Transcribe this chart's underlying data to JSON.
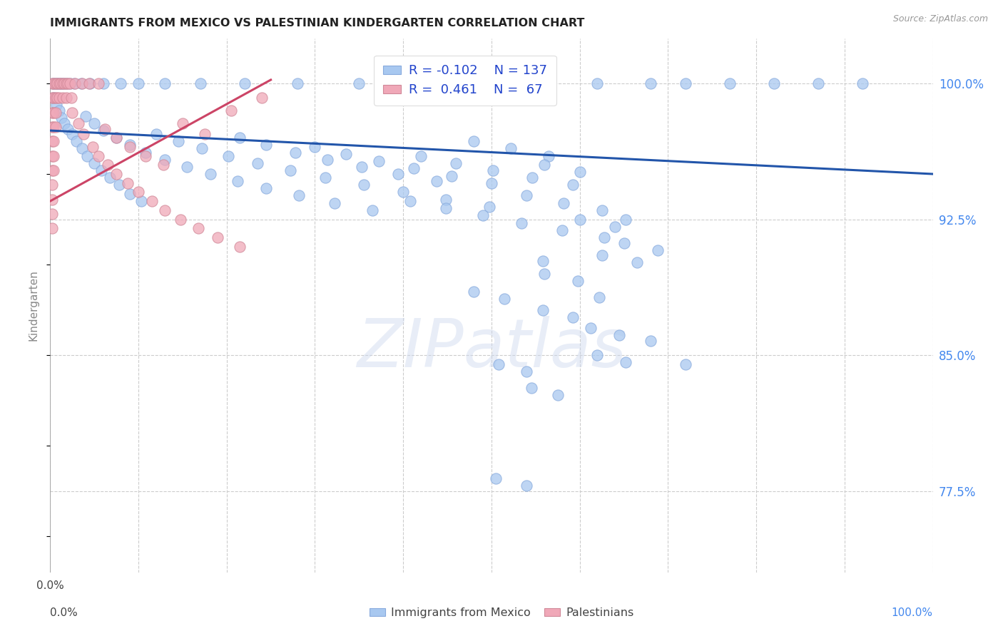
{
  "title": "IMMIGRANTS FROM MEXICO VS PALESTINIAN KINDERGARTEN CORRELATION CHART",
  "source": "Source: ZipAtlas.com",
  "ylabel": "Kindergarten",
  "xmin": 0.0,
  "xmax": 1.0,
  "ymin": 73.0,
  "ymax": 102.5,
  "legend_r1": "R = -0.102",
  "legend_n1": "N = 137",
  "legend_r2": "R =  0.461",
  "legend_n2": "N =  67",
  "blue_color": "#a8c8f0",
  "blue_edge_color": "#88aadd",
  "pink_color": "#f0a8b8",
  "pink_edge_color": "#d08898",
  "blue_line_color": "#2255aa",
  "pink_line_color": "#cc4466",
  "watermark_text": "ZIPatlas",
  "blue_scatter": [
    [
      0.003,
      100.0
    ],
    [
      0.005,
      100.0
    ],
    [
      0.007,
      100.0
    ],
    [
      0.009,
      100.0
    ],
    [
      0.011,
      100.0
    ],
    [
      0.013,
      100.0
    ],
    [
      0.015,
      100.0
    ],
    [
      0.018,
      100.0
    ],
    [
      0.022,
      100.0
    ],
    [
      0.027,
      100.0
    ],
    [
      0.035,
      100.0
    ],
    [
      0.045,
      100.0
    ],
    [
      0.06,
      100.0
    ],
    [
      0.08,
      100.0
    ],
    [
      0.1,
      100.0
    ],
    [
      0.13,
      100.0
    ],
    [
      0.17,
      100.0
    ],
    [
      0.22,
      100.0
    ],
    [
      0.28,
      100.0
    ],
    [
      0.35,
      100.0
    ],
    [
      0.42,
      100.0
    ],
    [
      0.5,
      100.0
    ],
    [
      0.55,
      100.0
    ],
    [
      0.62,
      100.0
    ],
    [
      0.68,
      100.0
    ],
    [
      0.72,
      100.0
    ],
    [
      0.77,
      100.0
    ],
    [
      0.82,
      100.0
    ],
    [
      0.87,
      100.0
    ],
    [
      0.92,
      100.0
    ],
    [
      0.004,
      99.2
    ],
    [
      0.007,
      98.8
    ],
    [
      0.01,
      98.5
    ],
    [
      0.013,
      98.1
    ],
    [
      0.016,
      97.8
    ],
    [
      0.02,
      97.5
    ],
    [
      0.025,
      97.2
    ],
    [
      0.03,
      96.8
    ],
    [
      0.036,
      96.4
    ],
    [
      0.042,
      96.0
    ],
    [
      0.05,
      95.6
    ],
    [
      0.058,
      95.2
    ],
    [
      0.068,
      94.8
    ],
    [
      0.078,
      94.4
    ],
    [
      0.09,
      93.9
    ],
    [
      0.103,
      93.5
    ],
    [
      0.04,
      98.2
    ],
    [
      0.05,
      97.8
    ],
    [
      0.06,
      97.4
    ],
    [
      0.075,
      97.0
    ],
    [
      0.09,
      96.6
    ],
    [
      0.108,
      96.2
    ],
    [
      0.13,
      95.8
    ],
    [
      0.155,
      95.4
    ],
    [
      0.182,
      95.0
    ],
    [
      0.212,
      94.6
    ],
    [
      0.245,
      94.2
    ],
    [
      0.282,
      93.8
    ],
    [
      0.322,
      93.4
    ],
    [
      0.365,
      93.0
    ],
    [
      0.12,
      97.2
    ],
    [
      0.145,
      96.8
    ],
    [
      0.172,
      96.4
    ],
    [
      0.202,
      96.0
    ],
    [
      0.235,
      95.6
    ],
    [
      0.272,
      95.2
    ],
    [
      0.312,
      94.8
    ],
    [
      0.355,
      94.4
    ],
    [
      0.4,
      94.0
    ],
    [
      0.448,
      93.6
    ],
    [
      0.498,
      93.2
    ],
    [
      0.215,
      97.0
    ],
    [
      0.245,
      96.6
    ],
    [
      0.278,
      96.2
    ],
    [
      0.314,
      95.8
    ],
    [
      0.353,
      95.4
    ],
    [
      0.394,
      95.0
    ],
    [
      0.438,
      94.6
    ],
    [
      0.3,
      96.5
    ],
    [
      0.335,
      96.1
    ],
    [
      0.372,
      95.7
    ],
    [
      0.412,
      95.3
    ],
    [
      0.455,
      94.9
    ],
    [
      0.5,
      94.5
    ],
    [
      0.42,
      96.0
    ],
    [
      0.46,
      95.6
    ],
    [
      0.502,
      95.2
    ],
    [
      0.546,
      94.8
    ],
    [
      0.592,
      94.4
    ],
    [
      0.48,
      96.8
    ],
    [
      0.522,
      96.4
    ],
    [
      0.565,
      96.0
    ],
    [
      0.56,
      95.5
    ],
    [
      0.6,
      95.1
    ],
    [
      0.408,
      93.5
    ],
    [
      0.448,
      93.1
    ],
    [
      0.49,
      92.7
    ],
    [
      0.534,
      92.3
    ],
    [
      0.58,
      91.9
    ],
    [
      0.628,
      91.5
    ],
    [
      0.54,
      93.8
    ],
    [
      0.582,
      93.4
    ],
    [
      0.625,
      93.0
    ],
    [
      0.6,
      92.5
    ],
    [
      0.64,
      92.1
    ],
    [
      0.625,
      90.5
    ],
    [
      0.665,
      90.1
    ],
    [
      0.65,
      91.2
    ],
    [
      0.688,
      90.8
    ],
    [
      0.56,
      89.5
    ],
    [
      0.598,
      89.1
    ],
    [
      0.48,
      88.5
    ],
    [
      0.515,
      88.1
    ],
    [
      0.558,
      87.5
    ],
    [
      0.592,
      87.1
    ],
    [
      0.612,
      86.5
    ],
    [
      0.645,
      86.1
    ],
    [
      0.62,
      85.0
    ],
    [
      0.652,
      84.6
    ],
    [
      0.508,
      84.5
    ],
    [
      0.54,
      84.1
    ],
    [
      0.545,
      83.2
    ],
    [
      0.575,
      82.8
    ],
    [
      0.505,
      78.2
    ],
    [
      0.54,
      77.8
    ],
    [
      0.652,
      92.5
    ],
    [
      0.558,
      90.2
    ],
    [
      0.622,
      88.2
    ],
    [
      0.68,
      85.8
    ],
    [
      0.72,
      84.5
    ]
  ],
  "pink_scatter": [
    [
      0.002,
      100.0
    ],
    [
      0.004,
      100.0
    ],
    [
      0.006,
      100.0
    ],
    [
      0.008,
      100.0
    ],
    [
      0.01,
      100.0
    ],
    [
      0.012,
      100.0
    ],
    [
      0.014,
      100.0
    ],
    [
      0.016,
      100.0
    ],
    [
      0.018,
      100.0
    ],
    [
      0.02,
      100.0
    ],
    [
      0.022,
      100.0
    ],
    [
      0.002,
      99.2
    ],
    [
      0.004,
      99.2
    ],
    [
      0.006,
      99.2
    ],
    [
      0.008,
      99.2
    ],
    [
      0.01,
      99.2
    ],
    [
      0.002,
      98.4
    ],
    [
      0.004,
      98.4
    ],
    [
      0.006,
      98.4
    ],
    [
      0.002,
      97.6
    ],
    [
      0.004,
      97.6
    ],
    [
      0.006,
      97.6
    ],
    [
      0.002,
      96.8
    ],
    [
      0.004,
      96.8
    ],
    [
      0.002,
      96.0
    ],
    [
      0.004,
      96.0
    ],
    [
      0.002,
      95.2
    ],
    [
      0.004,
      95.2
    ],
    [
      0.002,
      94.4
    ],
    [
      0.002,
      93.6
    ],
    [
      0.002,
      92.8
    ],
    [
      0.002,
      92.0
    ],
    [
      0.014,
      99.2
    ],
    [
      0.018,
      99.2
    ],
    [
      0.024,
      99.2
    ],
    [
      0.028,
      100.0
    ],
    [
      0.036,
      100.0
    ],
    [
      0.044,
      100.0
    ],
    [
      0.055,
      100.0
    ],
    [
      0.025,
      98.4
    ],
    [
      0.032,
      97.8
    ],
    [
      0.038,
      97.2
    ],
    [
      0.048,
      96.5
    ],
    [
      0.055,
      96.0
    ],
    [
      0.065,
      95.5
    ],
    [
      0.075,
      95.0
    ],
    [
      0.088,
      94.5
    ],
    [
      0.1,
      94.0
    ],
    [
      0.115,
      93.5
    ],
    [
      0.13,
      93.0
    ],
    [
      0.148,
      92.5
    ],
    [
      0.168,
      92.0
    ],
    [
      0.19,
      91.5
    ],
    [
      0.215,
      91.0
    ],
    [
      0.062,
      97.5
    ],
    [
      0.075,
      97.0
    ],
    [
      0.09,
      96.5
    ],
    [
      0.108,
      96.0
    ],
    [
      0.128,
      95.5
    ],
    [
      0.15,
      97.8
    ],
    [
      0.175,
      97.2
    ],
    [
      0.205,
      98.5
    ],
    [
      0.24,
      99.2
    ]
  ],
  "blue_trendline": [
    [
      0.0,
      97.4
    ],
    [
      1.0,
      95.0
    ]
  ],
  "pink_trendline_x": [
    0.0,
    0.25
  ],
  "pink_trendline_y": [
    93.5,
    100.2
  ],
  "yticks": [
    77.5,
    85.0,
    92.5,
    100.0
  ],
  "xtick_labels_left": "0.0%",
  "xtick_labels_right": "100.0%"
}
